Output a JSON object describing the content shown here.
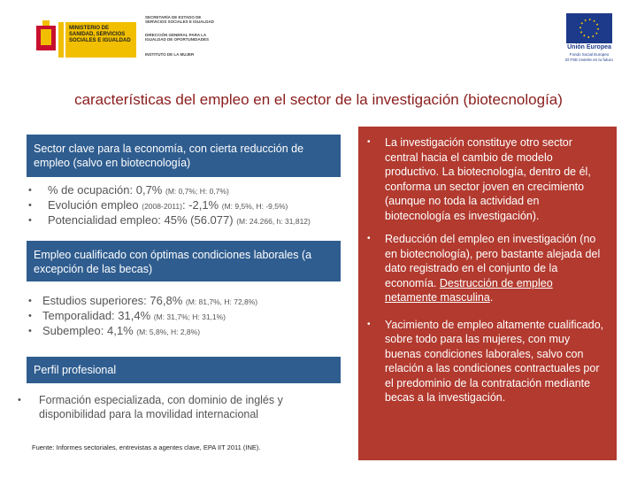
{
  "header": {
    "ministry": "MINISTERIO DE SANIDAD, SERVICIOS SOCIALES E IGUALDAD",
    "secretariat": "SECRETARÍA DE ESTADO DE SERVICIOS SOCIALES E IGUALDAD",
    "directorate": "DIRECCIÓN GENERAL PARA LA IGUALDAD DE OPORTUNIDADES",
    "institute": "INSTITUTO DE LA MUJER",
    "eu": "Unión Europea",
    "fund": "Fondo Social Europeo",
    "motto": "El FSE invierte en tu futuro"
  },
  "title": "características del empleo en el sector de la investigación (biotecnología)",
  "left": {
    "sections": [
      {
        "heading": "Sector clave para  la economía, con cierta reducción de empleo (salvo en biotecnología)",
        "items": [
          [
            "% de ocupación: 0,7%",
            "(M: 0,7%; H: 0,7%)"
          ],
          [
            "Evolución empleo",
            "(2008-2011)",
            ": -2,1%",
            "(M: 9,5%, H: -9,5%)"
          ],
          [
            "Potencialidad empleo:  45% (56.077)",
            "(M: 24.266, h: 31,812)"
          ]
        ]
      },
      {
        "heading": "Empleo cualificado con óptimas condiciones laborales (a excepción de las becas)",
        "items": [
          [
            "Estudios superiores: 76,8%",
            "(M: 81,7%, H: 72,8%)"
          ],
          [
            "Temporalidad: 31,4%",
            "(M: 31,7%; H: 31,1%)"
          ],
          [
            "Subempleo: 4,1%",
            "(M: 5,8%, H: 2,8%)"
          ]
        ]
      },
      {
        "heading": "Perfil profesional",
        "items": [
          [
            "Formación especializada, con dominio de inglés y disponibilidad para la movilidad internacional"
          ]
        ]
      }
    ],
    "source": "Fuente: Informes sectoriales, entrevistas a agentes clave, EPA IIT 2011 (INE)."
  },
  "right": {
    "items": [
      [
        "La investigación constituye otro sector central hacia el cambio de modelo productivo. La biotecnología, dentro de él, conforma un sector joven en crecimiento (aunque no toda la actividad en biotecnología es investigación)."
      ],
      [
        "Reducción del empleo en investigación (no en biotecnología), pero bastante alejada del dato registrado en el conjunto de la economía. ",
        "Destrucción de empleo netamente masculina",
        "."
      ],
      [
        "Yacimiento de empleo altamente cualificado, sobre todo para las mujeres, con muy buenas condiciones laborales, salvo con relación a las condiciones contractuales por el predominio de la contratación mediante becas a la investigación."
      ]
    ]
  }
}
